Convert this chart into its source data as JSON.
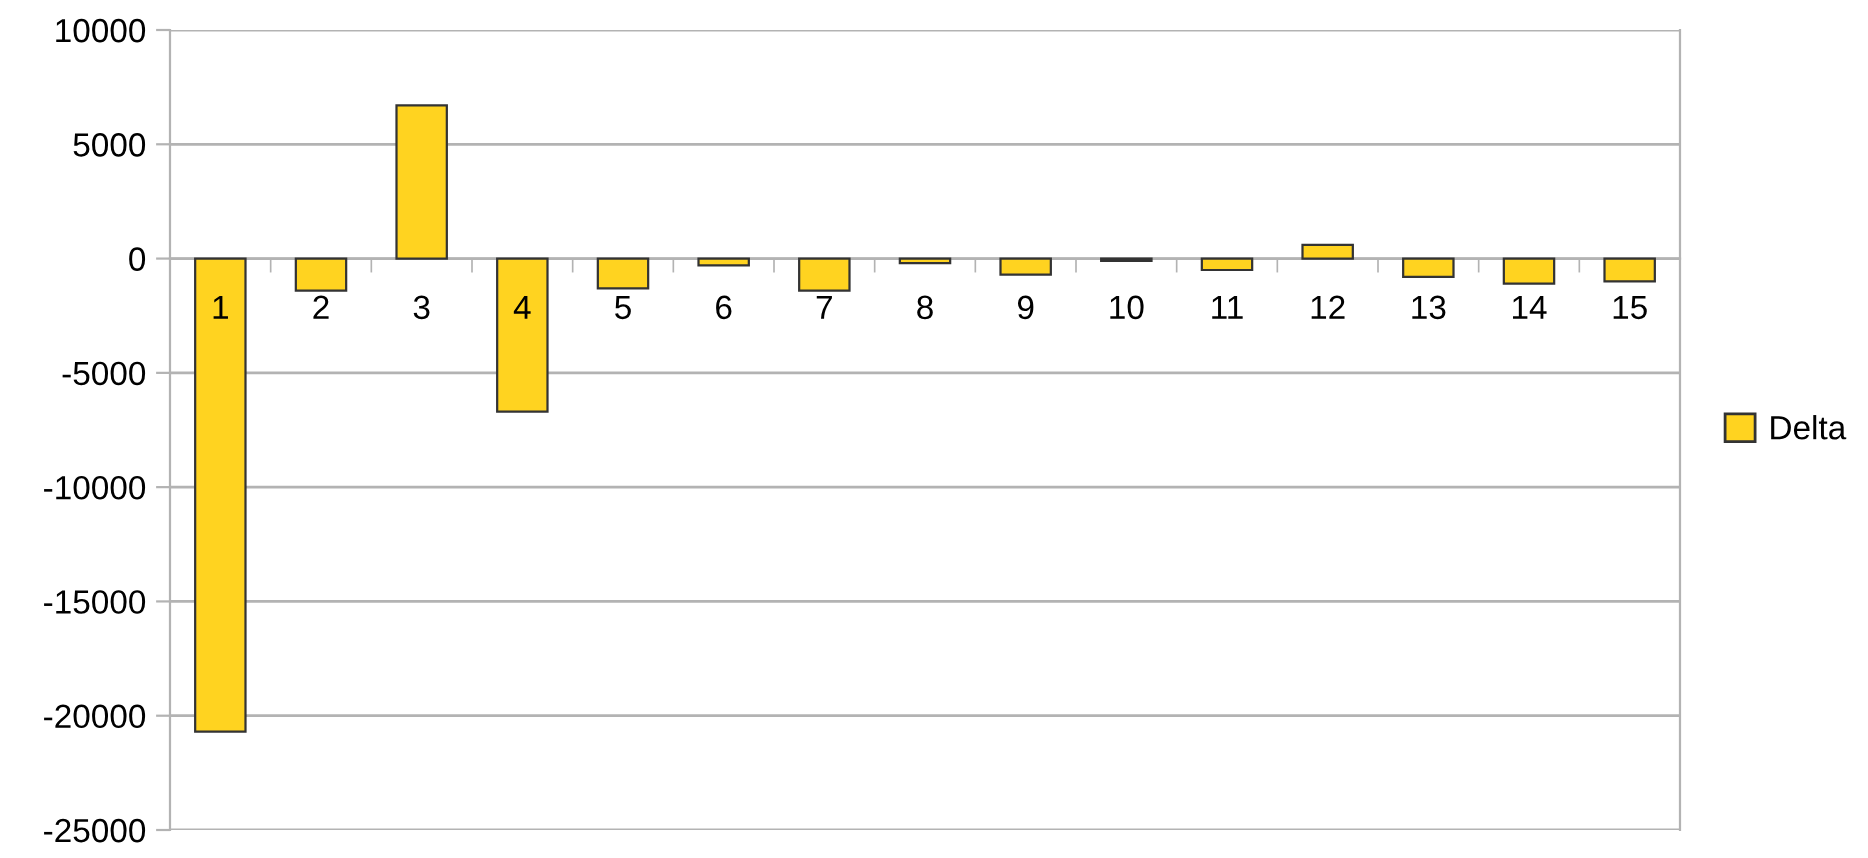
{
  "chart_data": {
    "type": "bar",
    "categories": [
      "1",
      "2",
      "3",
      "4",
      "5",
      "6",
      "7",
      "8",
      "9",
      "10",
      "11",
      "12",
      "13",
      "14",
      "15"
    ],
    "series": [
      {
        "name": "Delta",
        "color": "#ffd320",
        "values": [
          -20700,
          -1400,
          6700,
          -6700,
          -1300,
          -300,
          -1400,
          -200,
          -700,
          -100,
          -500,
          600,
          -800,
          -1100,
          -1000
        ]
      }
    ],
    "ylim": [
      -25000,
      10000
    ],
    "yticks": [
      -25000,
      -20000,
      -15000,
      -10000,
      -5000,
      0,
      5000,
      10000
    ],
    "grid": "y",
    "legend": "right"
  }
}
